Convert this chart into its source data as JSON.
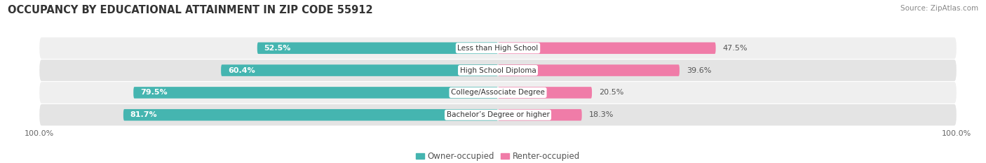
{
  "title": "OCCUPANCY BY EDUCATIONAL ATTAINMENT IN ZIP CODE 55912",
  "source": "Source: ZipAtlas.com",
  "categories": [
    "Less than High School",
    "High School Diploma",
    "College/Associate Degree",
    "Bachelor’s Degree or higher"
  ],
  "owner_values": [
    52.5,
    60.4,
    79.5,
    81.7
  ],
  "renter_values": [
    47.5,
    39.6,
    20.5,
    18.3
  ],
  "owner_color": "#45b5b0",
  "renter_color": "#f07ca8",
  "row_bg_color": "#efefef",
  "row_bg_color2": "#e4e4e4",
  "title_fontsize": 10.5,
  "label_fontsize": 8.0,
  "tick_fontsize": 8,
  "legend_fontsize": 8.5,
  "source_fontsize": 7.5,
  "bar_height": 0.52,
  "background_color": "#ffffff"
}
